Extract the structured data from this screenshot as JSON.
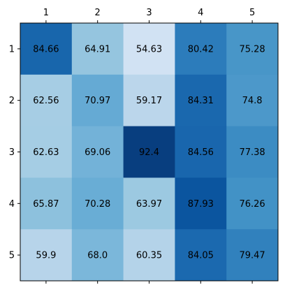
{
  "chart_data": {
    "type": "heatmap",
    "title": "",
    "xlabel": "",
    "ylabel": "",
    "x_labels": [
      "1",
      "2",
      "3",
      "4",
      "5"
    ],
    "y_labels": [
      "1",
      "2",
      "3",
      "4",
      "5"
    ],
    "x_axis_position": "top",
    "colormap": "Blues",
    "color_range": [
      45,
      95
    ],
    "grid": false,
    "legend": "none",
    "values": [
      [
        84.66,
        64.91,
        54.63,
        80.42,
        75.28
      ],
      [
        62.56,
        70.97,
        59.17,
        84.31,
        74.8
      ],
      [
        62.63,
        69.06,
        92.4,
        84.56,
        77.38
      ],
      [
        65.87,
        70.28,
        63.97,
        87.93,
        76.26
      ],
      [
        59.9,
        68.0,
        60.35,
        84.05,
        79.47
      ]
    ],
    "cell_labels": [
      [
        "84.66",
        "64.91",
        "54.63",
        "80.42",
        "75.28"
      ],
      [
        "62.56",
        "70.97",
        "59.17",
        "84.31",
        "74.8"
      ],
      [
        "62.63",
        "69.06",
        "92.4",
        "84.56",
        "77.38"
      ],
      [
        "65.87",
        "70.28",
        "63.97",
        "87.93",
        "76.26"
      ],
      [
        "59.9",
        "68.0",
        "60.35",
        "84.05",
        "79.47"
      ]
    ]
  }
}
